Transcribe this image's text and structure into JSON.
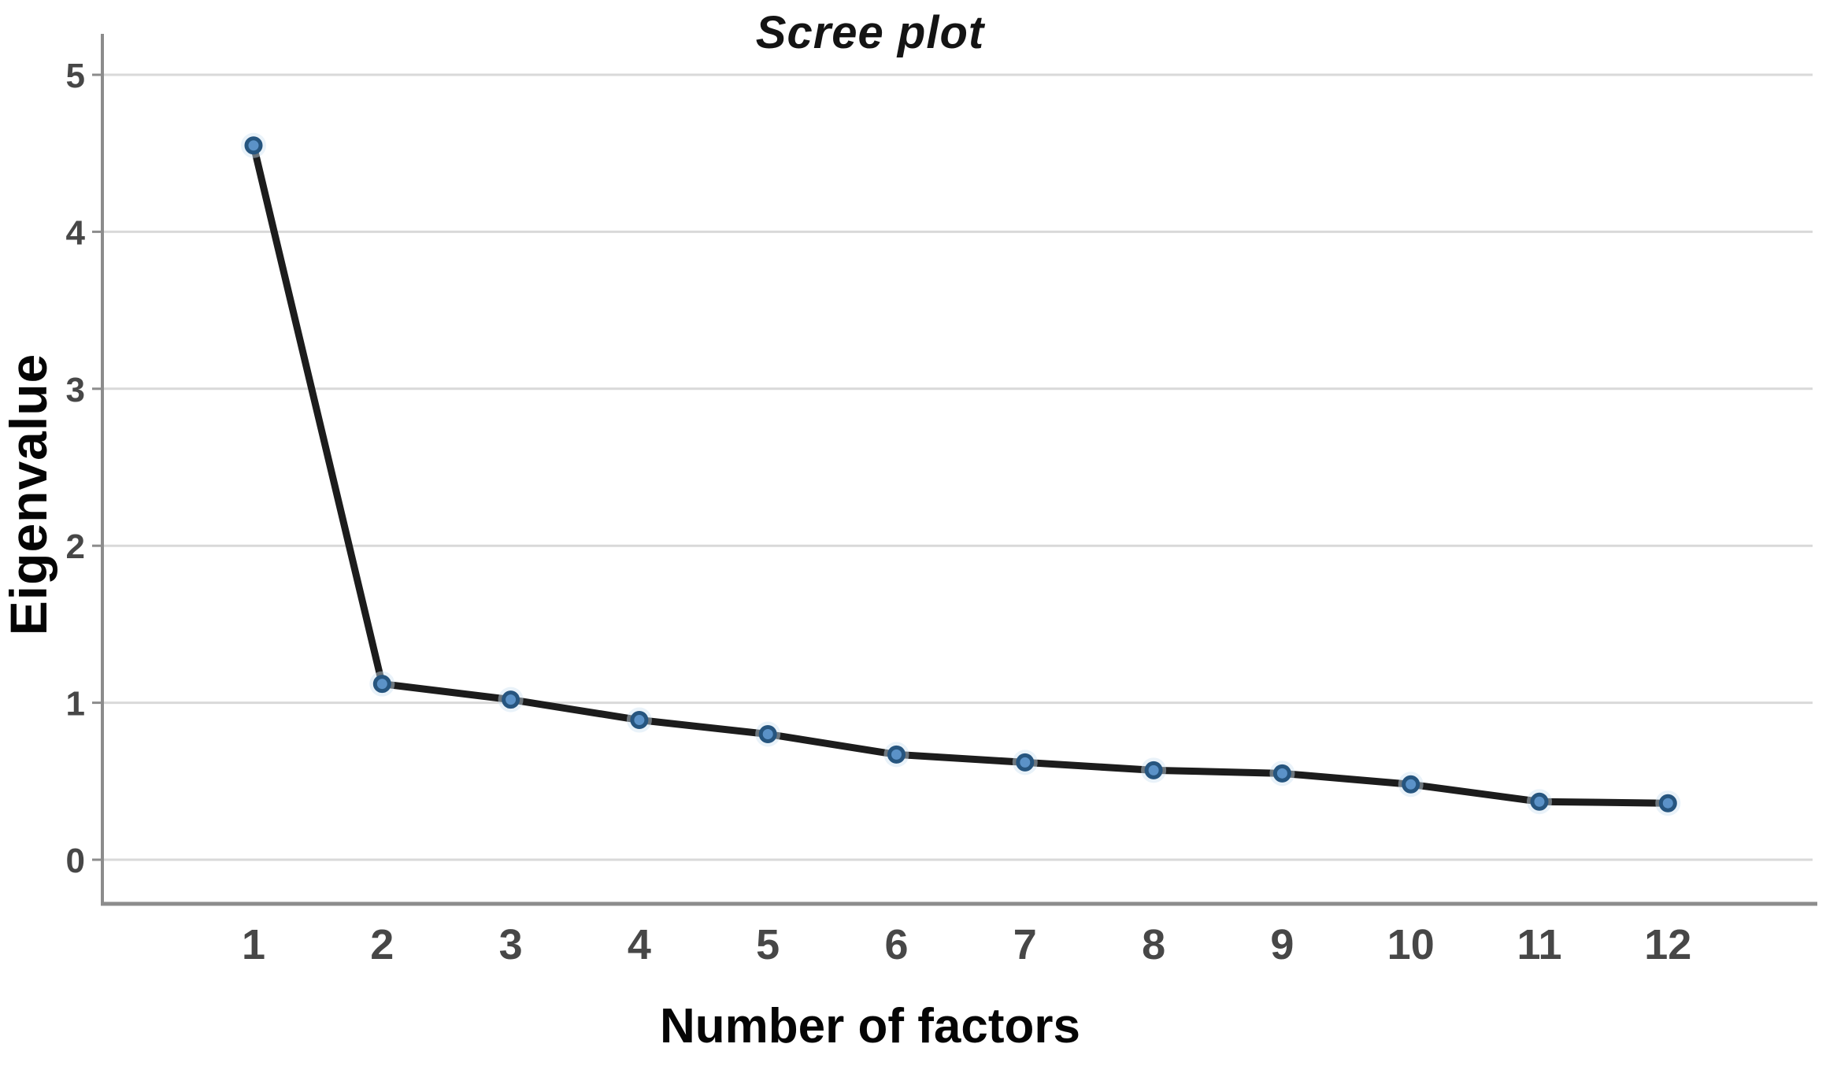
{
  "chart_data": {
    "type": "line",
    "title": "Scree plot",
    "xlabel": "Number of factors",
    "ylabel": "Eigenvalue",
    "x": [
      1,
      2,
      3,
      4,
      5,
      6,
      7,
      8,
      9,
      10,
      11,
      12
    ],
    "series": [
      {
        "name": "Eigenvalue",
        "values": [
          4.55,
          1.12,
          1.02,
          0.89,
          0.8,
          0.67,
          0.62,
          0.57,
          0.55,
          0.48,
          0.37,
          0.36
        ]
      }
    ],
    "xticks": [
      "1",
      "2",
      "3",
      "4",
      "5",
      "6",
      "7",
      "8",
      "9",
      "10",
      "11",
      "12"
    ],
    "yticks": [
      0,
      1,
      2,
      3,
      4,
      5
    ],
    "ylim": [
      0,
      5.27
    ],
    "grid": "horizontal",
    "legend": "none",
    "marker": "circle",
    "colors": {
      "line": "#1c1c1c",
      "marker_fill": "#5b92c8",
      "marker_stroke": "#26557f",
      "marker_halo": "#cfe2f2",
      "grid": "#d9d9d9",
      "axis": "#8c8c8c",
      "tick_label": "#474747",
      "text": "#050505",
      "background": "#ffffff"
    }
  }
}
